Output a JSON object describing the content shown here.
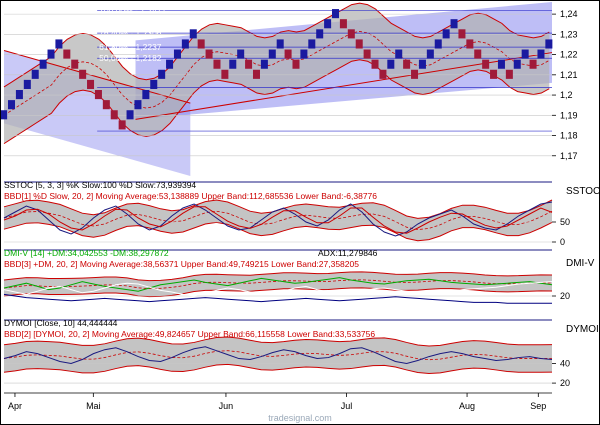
{
  "chart_data": [
    {
      "type": "line",
      "panel": "price",
      "series_kind": "point-and-figure / renko style bricks",
      "ylim": [
        1.16,
        1.245
      ],
      "yticks": [
        "1,24",
        "1,23",
        "1,22",
        "1,21",
        "1,2",
        "1,19",
        "1,18",
        "1,17"
      ],
      "ytick_values": [
        1.24,
        1.23,
        1.22,
        1.21,
        1.2,
        1.19,
        1.18,
        1.17
      ],
      "fib_labels": [
        "100,00% - 1,2417",
        "76,40% - 1,2306",
        "61,80% - 1,2237",
        "50,00% - 1,2182"
      ],
      "fib_values": [
        1.2417,
        1.2306,
        1.2237,
        1.2182
      ],
      "fib_extra_lines": [
        1.2038,
        1.1822
      ],
      "x_range": [
        0,
        1
      ],
      "bricks": [
        [
          0.0,
          1.19
        ],
        [
          0.01,
          1.195
        ],
        [
          0.02,
          1.2
        ],
        [
          0.03,
          1.205
        ],
        [
          0.04,
          1.21
        ],
        [
          0.05,
          1.215
        ],
        [
          0.06,
          1.22
        ],
        [
          0.07,
          1.225
        ],
        [
          0.08,
          1.22
        ],
        [
          0.09,
          1.215
        ],
        [
          0.1,
          1.21
        ],
        [
          0.11,
          1.205
        ],
        [
          0.12,
          1.2
        ],
        [
          0.13,
          1.195
        ],
        [
          0.14,
          1.19
        ],
        [
          0.15,
          1.185
        ],
        [
          0.16,
          1.19
        ],
        [
          0.17,
          1.195
        ],
        [
          0.18,
          1.2
        ],
        [
          0.19,
          1.205
        ],
        [
          0.2,
          1.21
        ],
        [
          0.21,
          1.215
        ],
        [
          0.22,
          1.22
        ],
        [
          0.23,
          1.225
        ],
        [
          0.24,
          1.23
        ],
        [
          0.25,
          1.225
        ],
        [
          0.26,
          1.22
        ],
        [
          0.27,
          1.215
        ],
        [
          0.28,
          1.21
        ],
        [
          0.29,
          1.215
        ],
        [
          0.3,
          1.22
        ],
        [
          0.31,
          1.215
        ],
        [
          0.32,
          1.21
        ],
        [
          0.33,
          1.215
        ],
        [
          0.34,
          1.22
        ],
        [
          0.35,
          1.225
        ],
        [
          0.36,
          1.22
        ],
        [
          0.37,
          1.215
        ],
        [
          0.38,
          1.22
        ],
        [
          0.39,
          1.225
        ],
        [
          0.4,
          1.23
        ],
        [
          0.41,
          1.235
        ],
        [
          0.42,
          1.24
        ],
        [
          0.43,
          1.235
        ],
        [
          0.44,
          1.23
        ],
        [
          0.45,
          1.225
        ],
        [
          0.46,
          1.22
        ],
        [
          0.47,
          1.215
        ],
        [
          0.48,
          1.21
        ],
        [
          0.49,
          1.215
        ],
        [
          0.5,
          1.22
        ],
        [
          0.51,
          1.215
        ],
        [
          0.52,
          1.21
        ],
        [
          0.53,
          1.215
        ],
        [
          0.54,
          1.22
        ],
        [
          0.55,
          1.225
        ],
        [
          0.56,
          1.23
        ],
        [
          0.57,
          1.235
        ],
        [
          0.58,
          1.23
        ],
        [
          0.59,
          1.225
        ],
        [
          0.6,
          1.22
        ],
        [
          0.61,
          1.215
        ],
        [
          0.62,
          1.21
        ],
        [
          0.63,
          1.215
        ],
        [
          0.64,
          1.21
        ],
        [
          0.65,
          1.215
        ],
        [
          0.66,
          1.22
        ],
        [
          0.67,
          1.215
        ],
        [
          0.68,
          1.22
        ],
        [
          0.69,
          1.225
        ]
      ],
      "brick_colors": {
        "up": "#1a1aa0",
        "down": "#a01a3a"
      },
      "band_colors": {
        "fill": "#b8b8b8",
        "band": "#cc0000",
        "channel": "#7777ee"
      }
    },
    {
      "type": "line",
      "panel": "sstoc",
      "panel_name": "SSTOC",
      "title_lines": [
        "SSTOC [5, 3, 3] %K Slow:100 %D Slow:73,939394",
        "BBD[1] %D Slow, 20, 2] Moving Average:53,138889 Upper Band:112,685536 Lower Band:-6,38776"
      ],
      "title_colors": [
        "#000000",
        "#cc0000"
      ],
      "ylim": [
        -15,
        115
      ],
      "yticks": [
        "50",
        "0"
      ],
      "ytick_values": [
        50,
        0
      ],
      "series": [
        {
          "name": "%K Slow",
          "values": [
            60,
            75,
            90,
            80,
            55,
            30,
            20,
            35,
            60,
            80,
            90,
            70,
            45,
            30,
            40,
            65,
            85,
            95,
            80,
            60,
            40,
            30,
            35,
            55,
            75,
            85,
            70,
            50,
            40,
            55,
            80,
            95,
            75,
            45,
            25,
            15,
            25,
            45,
            60,
            70,
            80,
            65,
            45,
            35,
            30,
            45,
            65,
            80,
            95,
            100
          ]
        },
        {
          "name": "%D Slow",
          "values": [
            55,
            65,
            80,
            82,
            70,
            50,
            35,
            30,
            45,
            65,
            82,
            80,
            60,
            45,
            38,
            52,
            72,
            88,
            88,
            70,
            52,
            40,
            34,
            44,
            62,
            78,
            78,
            62,
            48,
            48,
            65,
            85,
            85,
            62,
            40,
            25,
            22,
            35,
            50,
            62,
            72,
            70,
            55,
            42,
            35,
            40,
            55,
            70,
            85,
            74
          ]
        }
      ]
    },
    {
      "type": "line",
      "panel": "dmi",
      "panel_name": "DMI-V",
      "title_lines": [
        "DMI-V [14] +DM:34,042553 -DM:38,297872",
        "ADX:11,279846",
        "BBD[3] +DM, 20, 2] Moving Average:38,56371 Upper Band:49,749215 Lower Band:27,358205"
      ],
      "title_colors": [
        "#00aa00",
        "#000000",
        "#cc0000"
      ],
      "ylim": [
        0,
        60
      ],
      "yticks": [
        "20"
      ],
      "ytick_values": [
        20
      ],
      "series": [
        {
          "name": "+DM",
          "values": [
            30,
            33,
            36,
            32,
            28,
            30,
            34,
            38,
            35,
            32,
            30,
            28,
            26,
            30,
            34,
            36,
            38,
            40,
            37,
            35,
            33,
            36,
            39,
            42,
            40,
            38,
            36,
            37,
            39,
            41,
            43,
            40,
            38,
            36,
            35,
            37,
            39,
            40,
            41,
            39,
            37,
            36,
            35,
            34,
            35,
            36,
            37,
            38,
            36,
            34
          ]
        },
        {
          "name": "-DM",
          "values": [
            28,
            25,
            22,
            26,
            30,
            32,
            28,
            24,
            26,
            30,
            34,
            36,
            35,
            31,
            27,
            25,
            22,
            20,
            24,
            27,
            30,
            28,
            25,
            22,
            24,
            26,
            30,
            32,
            28,
            25,
            22,
            24,
            26,
            29,
            30,
            28,
            26,
            24,
            22,
            24,
            26,
            28,
            29,
            30,
            31,
            33,
            35,
            36,
            37,
            38
          ]
        },
        {
          "name": "ADX",
          "values": [
            22,
            20,
            18,
            17,
            16,
            15,
            14,
            15,
            16,
            17,
            16,
            15,
            14,
            13,
            14,
            15,
            16,
            17,
            18,
            17,
            16,
            15,
            14,
            13,
            14,
            15,
            16,
            17,
            16,
            15,
            14,
            15,
            16,
            17,
            18,
            19,
            18,
            17,
            16,
            15,
            14,
            13,
            12,
            12,
            12,
            11,
            11,
            11,
            11,
            11
          ]
        }
      ]
    },
    {
      "type": "line",
      "panel": "dymoi",
      "panel_name": "DYMOI",
      "title_lines": [
        "DYMOI [Close, 10] 44,444444",
        "BBD[2] [DYMOI, 20, 2] Moving Average:49,824657 Upper Band:66,115558 Lower Band:33,533756"
      ],
      "title_colors": [
        "#000000",
        "#cc0000"
      ],
      "ylim": [
        15,
        70
      ],
      "yticks": [
        "40",
        "20"
      ],
      "ytick_values": [
        40,
        20
      ],
      "series": [
        {
          "name": "DYMOI",
          "values": [
            45,
            48,
            52,
            50,
            46,
            42,
            40,
            44,
            50,
            54,
            56,
            52,
            47,
            43,
            42,
            46,
            51,
            55,
            57,
            53,
            49,
            45,
            44,
            47,
            51,
            54,
            52,
            48,
            45,
            46,
            50,
            55,
            56,
            52,
            47,
            42,
            40,
            43,
            47,
            50,
            52,
            50,
            47,
            45,
            43,
            44,
            46,
            47,
            45,
            44
          ]
        }
      ]
    }
  ],
  "x_axis": {
    "labels": [
      "Apr",
      "Mai",
      "Jun",
      "Jul",
      "Aug",
      "Sep"
    ],
    "label_positions": [
      0.02,
      0.163,
      0.405,
      0.625,
      0.845,
      0.975
    ]
  },
  "watermark": "tradesignal.com",
  "colors": {
    "band": "#cc0000",
    "band_fill": "#b0b0b0",
    "channel_fill": "#8888ee",
    "grid": "#c8c8c8",
    "panel_sep": "#1a1a80"
  }
}
